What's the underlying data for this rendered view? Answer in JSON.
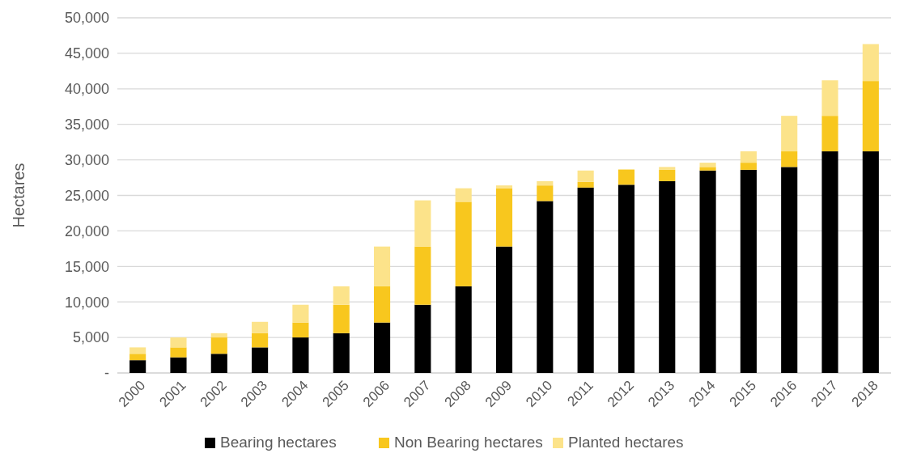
{
  "chart_data": {
    "type": "bar",
    "stacked": true,
    "ylabel": "Hectares",
    "categories": [
      "2000",
      "2001",
      "2002",
      "2003",
      "2004",
      "2005",
      "2006",
      "2007",
      "2008",
      "2009",
      "2010",
      "2011",
      "2012",
      "2013",
      "2014",
      "2015",
      "2016",
      "2017",
      "2018"
    ],
    "series": [
      {
        "name": "Bearing hectares",
        "color": "#000000",
        "values": [
          1800,
          2200,
          2700,
          3600,
          5000,
          5600,
          7100,
          9600,
          12200,
          17800,
          24200,
          26100,
          26500,
          27000,
          28500,
          28600,
          29000,
          31200,
          31200
        ]
      },
      {
        "name": "Non Bearing hectares",
        "color": "#f8c71e",
        "values": [
          900,
          1400,
          2300,
          2000,
          2100,
          4000,
          5100,
          8200,
          11900,
          8200,
          2200,
          800,
          2100,
          1600,
          500,
          1000,
          2200,
          5000,
          9900
        ]
      },
      {
        "name": "Planted hectares",
        "color": "#fce38a",
        "values": [
          900,
          1400,
          600,
          1600,
          2500,
          2600,
          5600,
          6500,
          1900,
          400,
          600,
          1600,
          100,
          400,
          600,
          1600,
          5000,
          5000,
          5200
        ]
      }
    ],
    "ylim": [
      0,
      50000
    ],
    "yticks": [
      {
        "value": 0,
        "label": "-"
      },
      {
        "value": 5000,
        "label": "5,000"
      },
      {
        "value": 10000,
        "label": "10,000"
      },
      {
        "value": 15000,
        "label": "15,000"
      },
      {
        "value": 20000,
        "label": "20,000"
      },
      {
        "value": 25000,
        "label": "25,000"
      },
      {
        "value": 30000,
        "label": "30,000"
      },
      {
        "value": 35000,
        "label": "35,000"
      },
      {
        "value": 40000,
        "label": "40,000"
      },
      {
        "value": 45000,
        "label": "45,000"
      },
      {
        "value": 50000,
        "label": "50,000"
      }
    ],
    "grid": "y",
    "legend": "bottom"
  }
}
